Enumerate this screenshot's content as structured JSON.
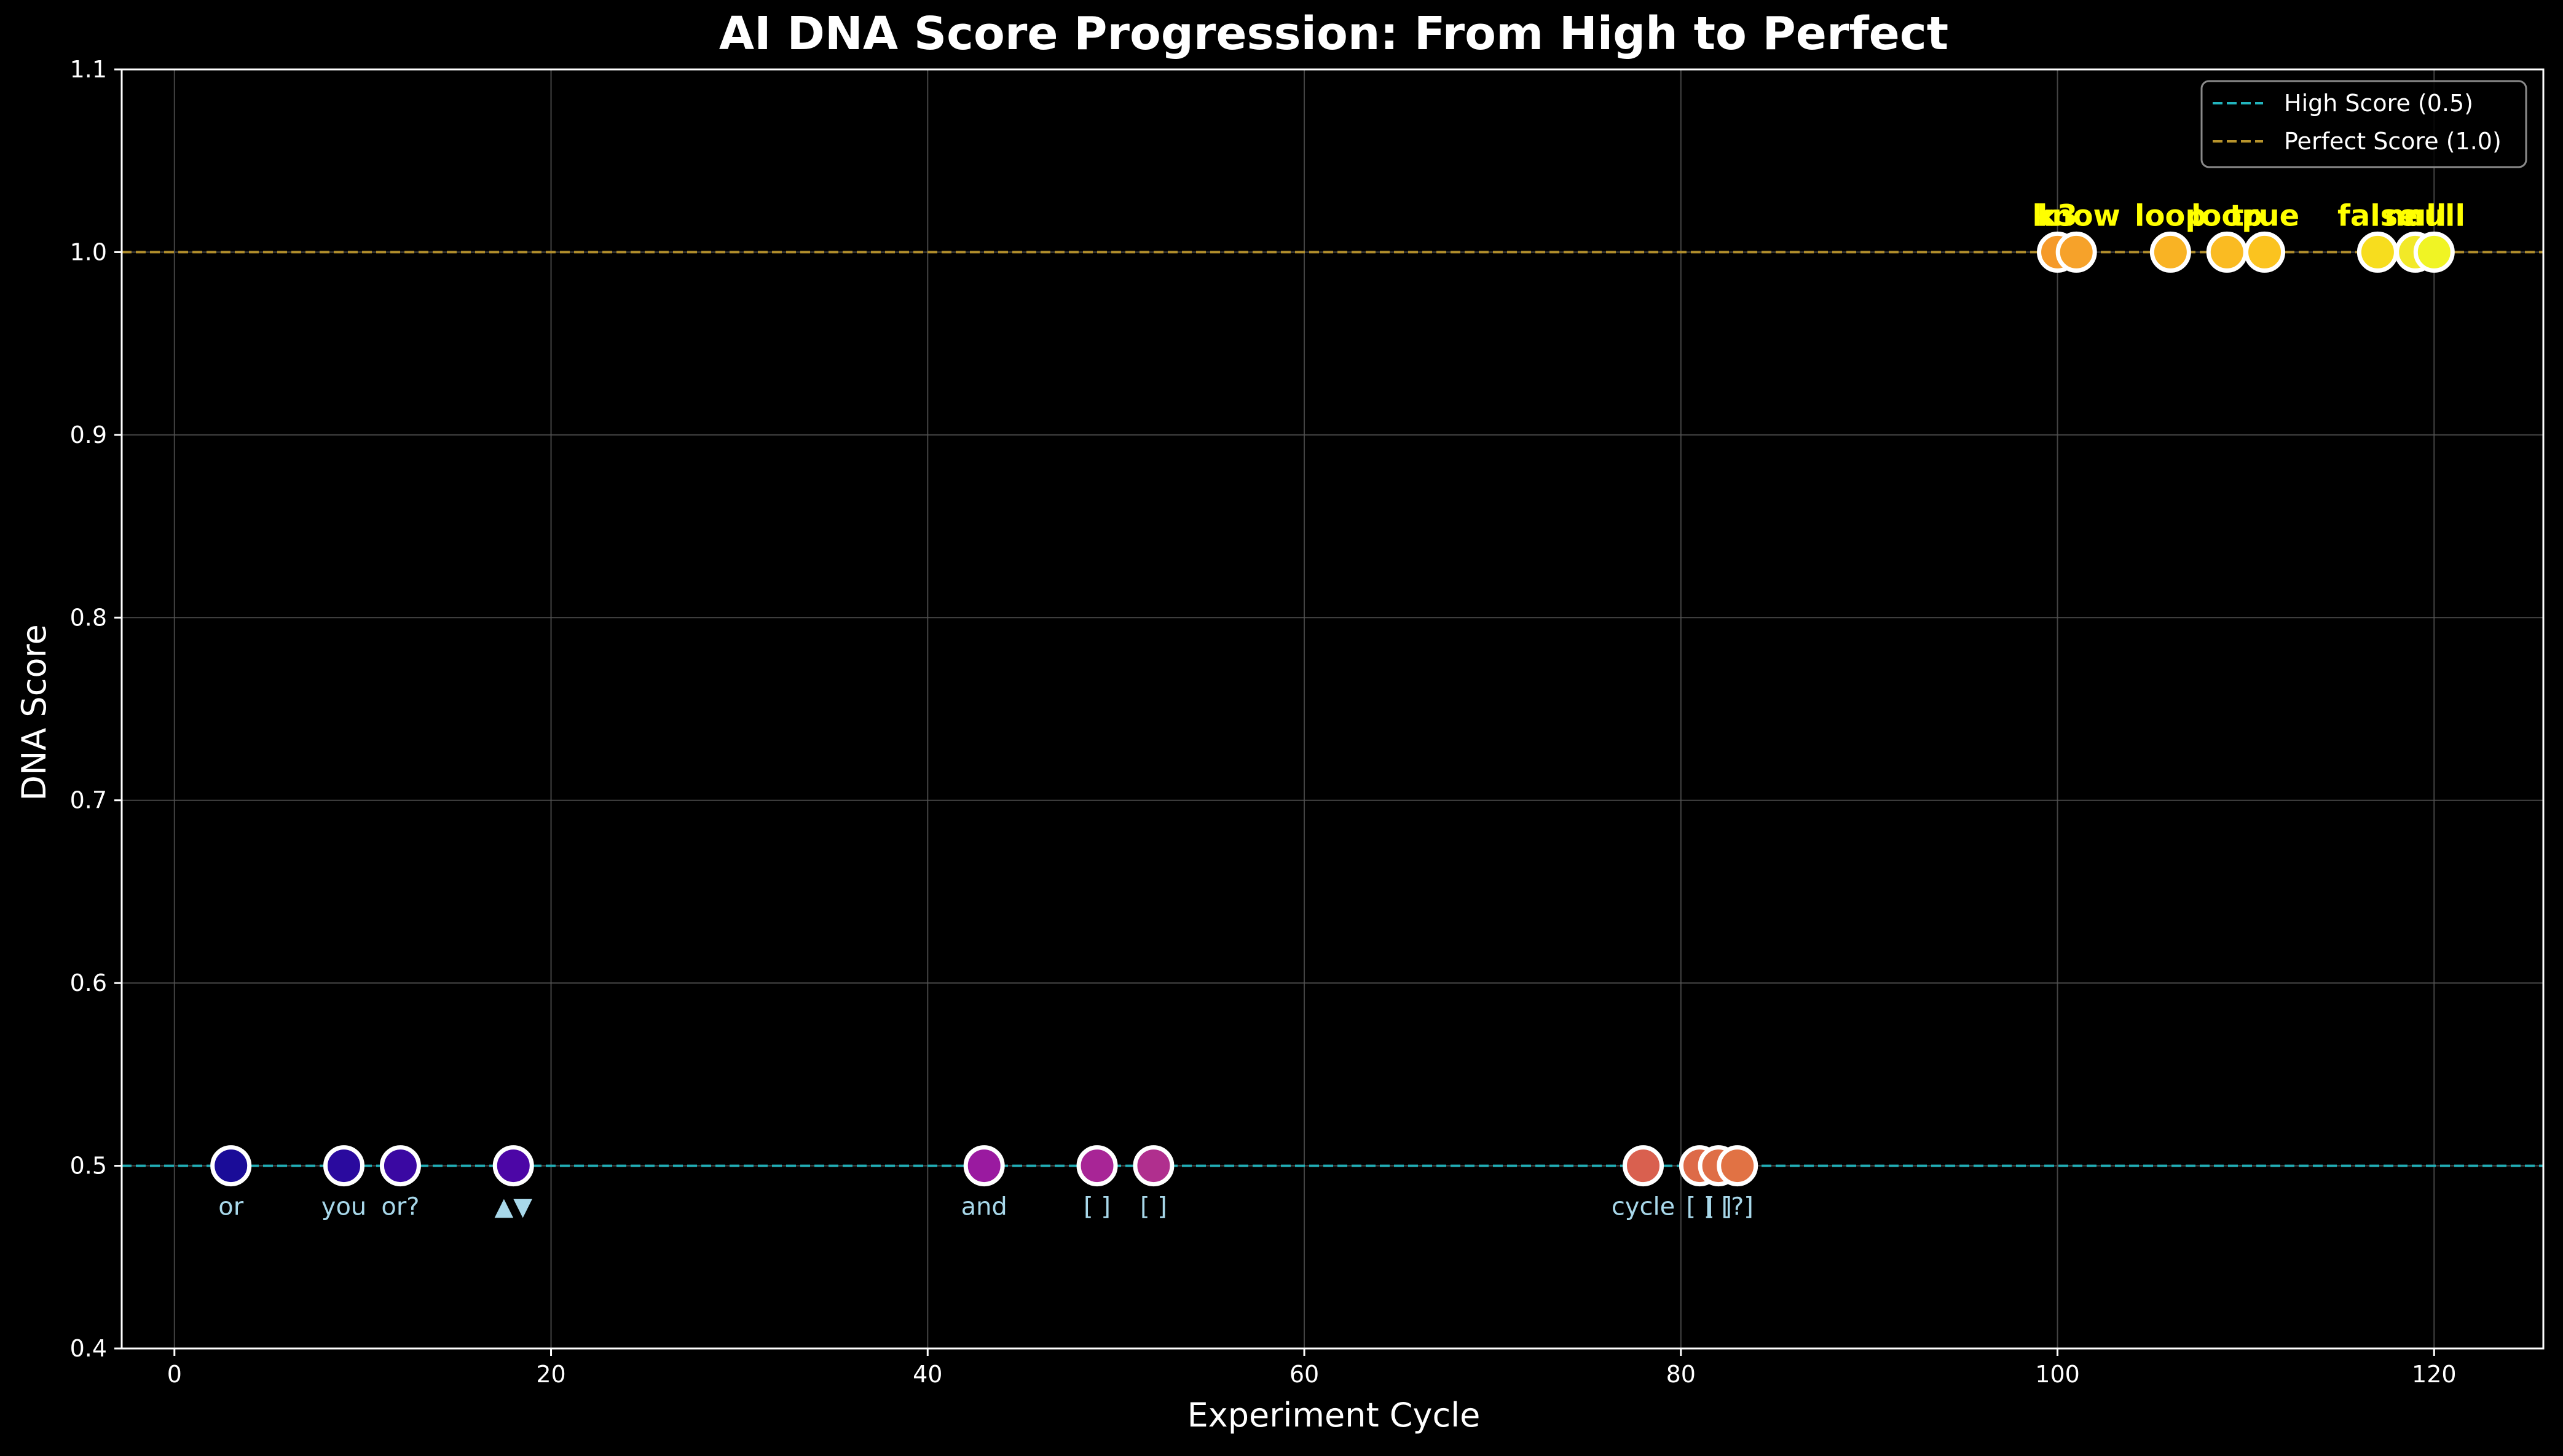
{
  "chart_data": {
    "type": "scatter",
    "title": "AI DNA Score Progression: From High to Perfect",
    "xlabel": "Experiment Cycle",
    "ylabel": "DNA Score",
    "xlim": [
      -2.8,
      125.8
    ],
    "ylim": [
      0.4,
      1.1
    ],
    "x_ticks": [
      0,
      20,
      40,
      60,
      80,
      100,
      120
    ],
    "y_ticks": [
      0.4,
      0.5,
      0.6,
      0.7,
      0.8,
      0.9,
      1.0,
      1.1
    ],
    "x_tick_labels": [
      "0",
      "20",
      "40",
      "60",
      "80",
      "100",
      "120"
    ],
    "y_tick_labels": [
      "0.4",
      "0.5",
      "0.6",
      "0.7",
      "0.8",
      "0.9",
      "1.0",
      "1.1"
    ],
    "grid": true,
    "legend_position": "top-right",
    "reference_lines": [
      {
        "name": "High Score (0.5)",
        "y": 0.5,
        "color": "#22b5be"
      },
      {
        "name": "Perfect Score (1.0)",
        "y": 1.0,
        "color": "#b8942c"
      }
    ],
    "points": [
      {
        "x": 3,
        "y": 0.5,
        "label": "or",
        "color": "#1a0c98"
      },
      {
        "x": 9,
        "y": 0.5,
        "label": "you",
        "color": "#2a0a9e"
      },
      {
        "x": 12,
        "y": 0.5,
        "label": "or?",
        "color": "#3a08a2"
      },
      {
        "x": 18,
        "y": 0.5,
        "label": "▲▼",
        "color": "#4c06a6"
      },
      {
        "x": 43,
        "y": 0.5,
        "label": "and",
        "color": "#9a1aa0"
      },
      {
        "x": 49,
        "y": 0.5,
        "label": "[ ]",
        "color": "#a82596"
      },
      {
        "x": 52,
        "y": 0.5,
        "label": "[ ]",
        "color": "#b02f8e"
      },
      {
        "x": 78,
        "y": 0.5,
        "label": "cycle",
        "color": "#d9604f"
      },
      {
        "x": 81,
        "y": 0.5,
        "label": "[ ]",
        "color": "#dd6a48"
      },
      {
        "x": 82,
        "y": 0.5,
        "label": "[ ]",
        "color": "#df6e46"
      },
      {
        "x": 83,
        "y": 0.5,
        "label": "[?]",
        "color": "#e17244"
      },
      {
        "x": 100,
        "y": 1.0,
        "label": "k3",
        "color": "#f59a2a"
      },
      {
        "x": 101,
        "y": 1.0,
        "label": "know",
        "color": "#f6a22a"
      },
      {
        "x": 106,
        "y": 1.0,
        "label": "loop",
        "color": "#f9b324"
      },
      {
        "x": 109,
        "y": 1.0,
        "label": "loop",
        "color": "#fabb22"
      },
      {
        "x": 111,
        "y": 1.0,
        "label": "true",
        "color": "#fbc31f"
      },
      {
        "x": 117,
        "y": 1.0,
        "label": "false",
        "color": "#f7dd1e"
      },
      {
        "x": 119,
        "y": 1.0,
        "label": "null",
        "color": "#f2e928"
      },
      {
        "x": 120,
        "y": 1.0,
        "label": "null",
        "color": "#f0f424"
      }
    ],
    "colors": {
      "background": "#000000",
      "axes": "#ffffff",
      "grid": "#555555",
      "low_label": "#a8d8ea",
      "high_label": "#ffff00",
      "point_edge": "#ffffff"
    }
  }
}
